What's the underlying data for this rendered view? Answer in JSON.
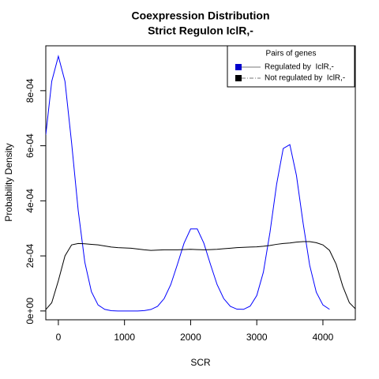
{
  "chart_data": {
    "type": "line",
    "title": "Coexpression Distribution",
    "subtitle": "Strict Regulon IclR,-",
    "x_label": "SCR",
    "y_label": "Probability Density",
    "x": [
      -190,
      -100,
      0,
      100,
      200,
      300,
      400,
      500,
      600,
      700,
      800,
      900,
      1000,
      1100,
      1200,
      1300,
      1400,
      1500,
      1600,
      1700,
      1800,
      1900,
      2000,
      2100,
      2200,
      2300,
      2400,
      2500,
      2600,
      2700,
      2800,
      2900,
      3000,
      3100,
      3200,
      3300,
      3400,
      3500,
      3600,
      3700,
      3800,
      3900,
      4000,
      4100,
      4200,
      4300,
      4400,
      4490
    ],
    "series": [
      {
        "name": "Regulated by  IclR,-",
        "color": "#0000ff",
        "legend_color": "#0000cc",
        "legend_line_color": "#777777",
        "legend_linestyle": "solid",
        "values": [
          0.00064,
          0.000834,
          0.000925,
          0.000834,
          0.000611,
          0.000365,
          0.000177,
          7e-05,
          2.2e-05,
          6e-06,
          1e-06,
          0,
          0,
          0,
          0,
          1.5e-06,
          5.6e-06,
          1.7e-05,
          4.5e-05,
          9.6e-05,
          0.000169,
          0.000246,
          0.000298,
          0.000298,
          0.000246,
          0.000169,
          9.6e-05,
          4.5e-05,
          1.7e-05,
          6.6e-06,
          5.9e-06,
          1.75e-05,
          5.6e-05,
          0.000141,
          0.000286,
          0.00046,
          0.00059,
          0.000604,
          0.000492,
          0.00032,
          0.000166,
          6.8e-05,
          2.2e-05,
          6e-06,
          null,
          null,
          null,
          null
        ]
      },
      {
        "name": "Not regulated by  IclR,-",
        "color": "#000000",
        "legend_color": "#000000",
        "legend_line_color": "#777777",
        "legend_linestyle": "dashdot",
        "values": [
          5e-06,
          3e-05,
          0.00011,
          0.0002,
          0.00024,
          0.000245,
          0.000244,
          0.000242,
          0.00024,
          0.000236,
          0.000232,
          0.00023,
          0.000229,
          0.000228,
          0.000225,
          0.000222,
          0.00022,
          0.000221,
          0.000222,
          0.000222,
          0.000222,
          0.000223,
          0.000224,
          0.000223,
          0.000222,
          0.000223,
          0.000224,
          0.000226,
          0.000228,
          0.00023,
          0.000231,
          0.000232,
          0.000233,
          0.000235,
          0.000238,
          0.000242,
          0.000245,
          0.000247,
          0.00025,
          0.000252,
          0.000252,
          0.000248,
          0.00024,
          0.00022,
          0.00017,
          9e-05,
          3e-05,
          8e-06
        ]
      }
    ],
    "legend_title": "Pairs of genes",
    "legend_position": "top-right",
    "xlim": [
      -190,
      4490
    ],
    "ylim": [
      -3.2e-05,
      0.000963
    ],
    "xticks": [
      0,
      1000,
      2000,
      3000,
      4000
    ],
    "yticks": [
      {
        "value": 0,
        "label": "0e+00"
      },
      {
        "value": 0.0002,
        "label": "2e-04"
      },
      {
        "value": 0.0004,
        "label": "4e-04"
      },
      {
        "value": 0.0006,
        "label": "6e-04"
      },
      {
        "value": 0.0008,
        "label": "8e-04"
      }
    ],
    "grid": false
  }
}
